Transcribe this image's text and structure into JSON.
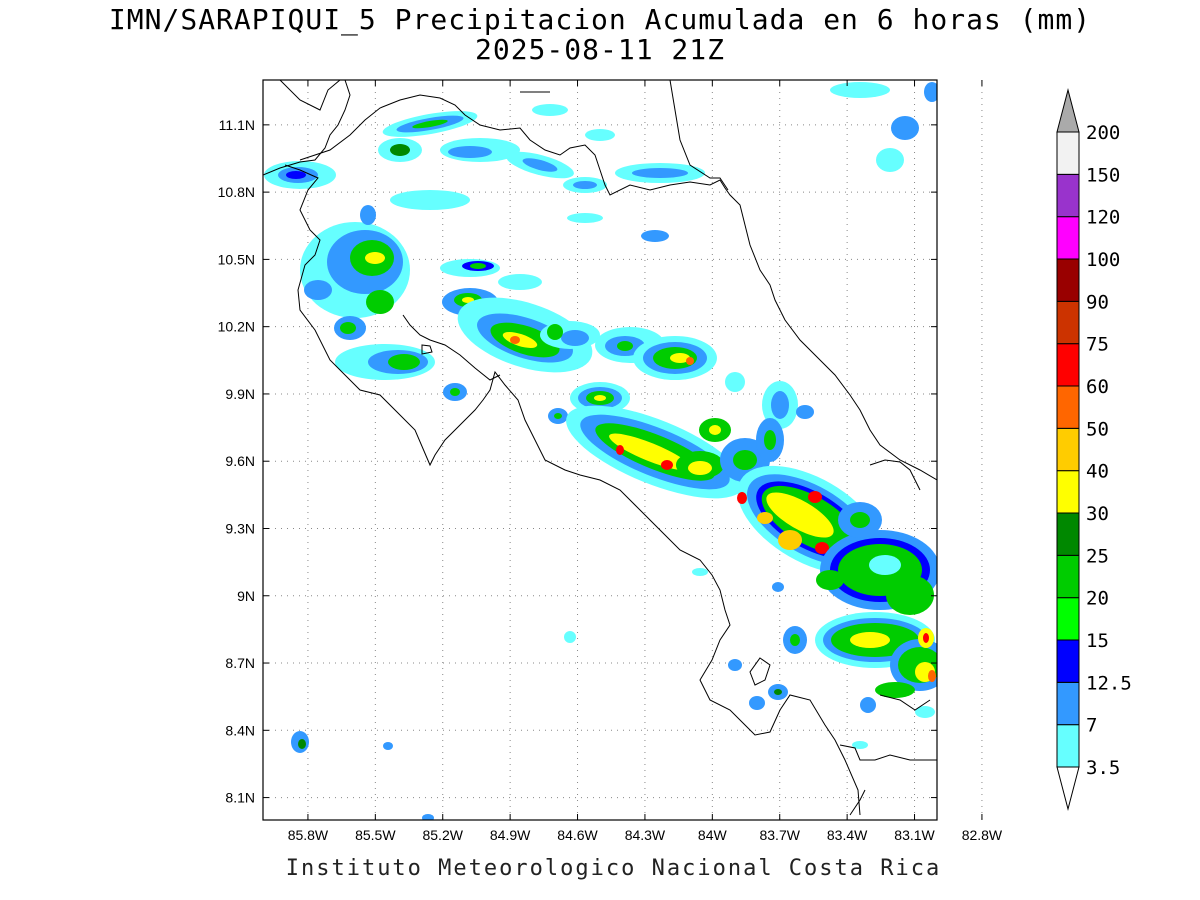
{
  "map": {
    "title_line1": "IMN/SARAPIQUI_5 Precipitacion Acumulada en 6 horas (mm)",
    "title_line2": "2025-08-11 21Z",
    "credit": "Instituto Meteorologico Nacional Costa Rica",
    "lat_labels": [
      "11.1N",
      "10.8N",
      "10.5N",
      "10.2N",
      "9.9N",
      "9.6N",
      "9.3N",
      "9N",
      "8.7N",
      "8.4N",
      "8.1N"
    ],
    "lat_values": [
      11.1,
      10.8,
      10.5,
      10.2,
      9.9,
      9.6,
      9.3,
      9.0,
      8.7,
      8.4,
      8.1
    ],
    "lon_labels": [
      "85.8W",
      "85.5W",
      "85.2W",
      "84.9W",
      "84.6W",
      "84.3W",
      "84W",
      "83.7W",
      "83.4W",
      "83.1W",
      "82.8W"
    ],
    "lon_values": [
      -85.8,
      -85.5,
      -85.2,
      -84.9,
      -84.6,
      -84.3,
      -84.0,
      -83.7,
      -83.4,
      -83.1,
      -82.8
    ],
    "lat_range": [
      8.0,
      11.3
    ],
    "lon_range": [
      -86.0,
      -83.0
    ],
    "grid": "dotted"
  },
  "colorbar": {
    "levels": [
      "3.5",
      "7",
      "12.5",
      "15",
      "20",
      "25",
      "30",
      "40",
      "50",
      "60",
      "75",
      "90",
      "100",
      "120",
      "150",
      "200"
    ],
    "colors": [
      "#66ffff",
      "#3399ff",
      "#0000ff",
      "#00ff00",
      "#00cc00",
      "#008800",
      "#ffff00",
      "#ffcc00",
      "#ff6600",
      "#ff0000",
      "#cc3300",
      "#990000",
      "#ff00ff",
      "#9933cc",
      "#f2f2f2",
      "#aaaaaa"
    ]
  }
}
